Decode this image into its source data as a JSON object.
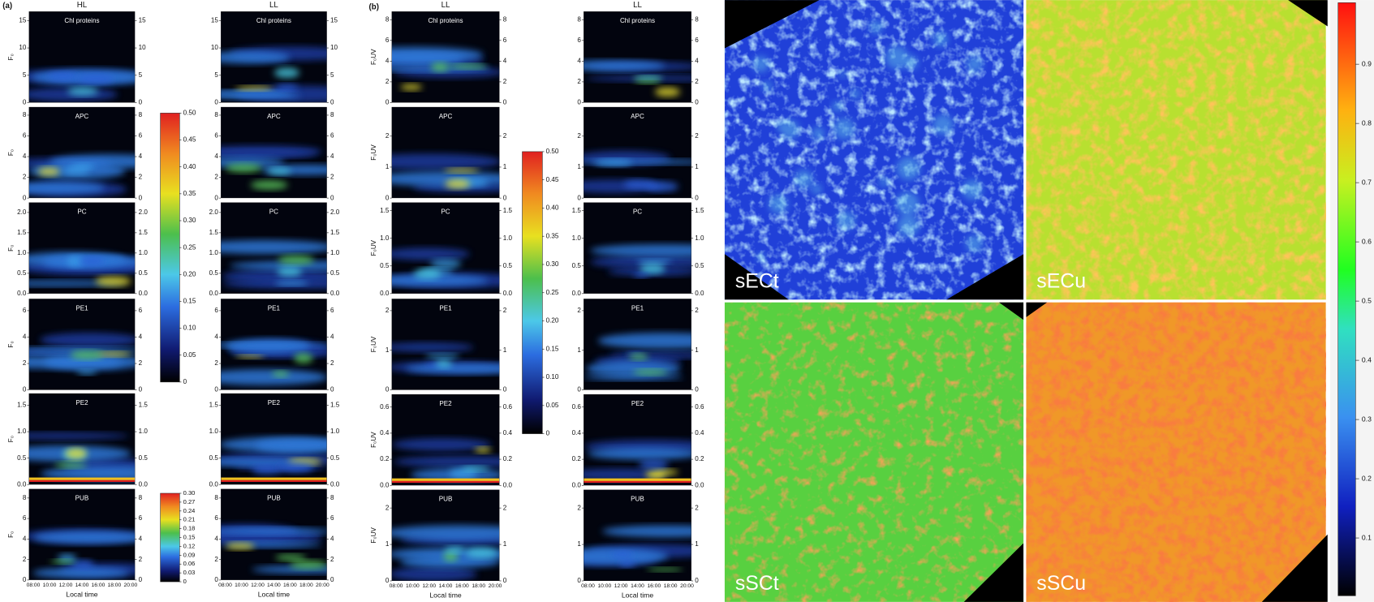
{
  "panel_a": {
    "label": "(a)",
    "column_titles": [
      "HL",
      "LL"
    ],
    "rows": [
      {
        "name": "Chl proteins",
        "y_label": "F₀",
        "yticks": [
          "0",
          "5",
          "10",
          "15"
        ]
      },
      {
        "name": "APC",
        "y_label": "F₀",
        "yticks": [
          "0",
          "2",
          "4",
          "6",
          "8"
        ]
      },
      {
        "name": "PC",
        "y_label": "F₀",
        "yticks": [
          "0.0",
          "0.5",
          "1.0",
          "1.5",
          "2.0"
        ]
      },
      {
        "name": "PE1",
        "y_label": "F₀",
        "yticks": [
          "0",
          "2",
          "4",
          "6"
        ]
      },
      {
        "name": "PE2",
        "y_label": "F₀",
        "yticks": [
          "0.0",
          "0.5",
          "1.0",
          "1.5"
        ]
      },
      {
        "name": "PUB",
        "y_label": "F₀",
        "yticks": [
          "0",
          "2",
          "4",
          "6",
          "8"
        ]
      }
    ],
    "xticks": [
      "08:00",
      "10:00",
      "12:00",
      "14:00",
      "16:00",
      "18:00",
      "20:00"
    ],
    "x_label": "Local time",
    "colorbar_top": {
      "ticks": [
        "0",
        "0.05",
        "0.10",
        "0.15",
        "0.20",
        "0.25",
        "0.30",
        "0.35",
        "0.40",
        "0.45",
        "0.50"
      ]
    },
    "colorbar_bottom": {
      "ticks": [
        "0",
        "0.03",
        "0.06",
        "0.09",
        "0.12",
        "0.15",
        "0.18",
        "0.21",
        "0.24",
        "0.27",
        "0.30"
      ]
    }
  },
  "panel_b": {
    "label": "(b)",
    "column_titles": [
      "LL",
      "LL"
    ],
    "rows": [
      {
        "name": "Chl proteins",
        "y_label": "F₀UV",
        "yticks": [
          "0",
          "2",
          "4",
          "6",
          "8"
        ]
      },
      {
        "name": "APC",
        "y_label": "F₀UV",
        "yticks": [
          "0",
          "1",
          "2"
        ]
      },
      {
        "name": "PC",
        "y_label": "F₀UV",
        "yticks": [
          "0.0",
          "0.5",
          "1.0",
          "1.5"
        ]
      },
      {
        "name": "PE1",
        "y_label": "F₀UV",
        "yticks": [
          "0",
          "1",
          "2"
        ]
      },
      {
        "name": "PE2",
        "y_label": "F₀UV",
        "yticks": [
          "0.0",
          "0.2",
          "0.4",
          "0.6"
        ]
      },
      {
        "name": "PUB",
        "y_label": "F₀UV",
        "yticks": [
          "0",
          "1",
          "2"
        ]
      }
    ],
    "xticks": [
      "08:00",
      "10:00",
      "12:00",
      "14:00",
      "16:00",
      "18:00",
      "20:00"
    ],
    "x_label": "Local time",
    "colorbar": {
      "ticks": [
        "0",
        "0.05",
        "0.10",
        "0.15",
        "0.20",
        "0.25",
        "0.30",
        "0.35",
        "0.40",
        "0.45",
        "0.50"
      ]
    }
  },
  "images": [
    {
      "label": "sECt"
    },
    {
      "label": "sECu"
    },
    {
      "label": "sSCt"
    },
    {
      "label": "sSCu"
    }
  ],
  "image_colorbar": {
    "ticks": [
      "0.1",
      "0.2",
      "0.3",
      "0.4",
      "0.5",
      "0.6",
      "0.7",
      "0.8",
      "0.9"
    ]
  }
}
